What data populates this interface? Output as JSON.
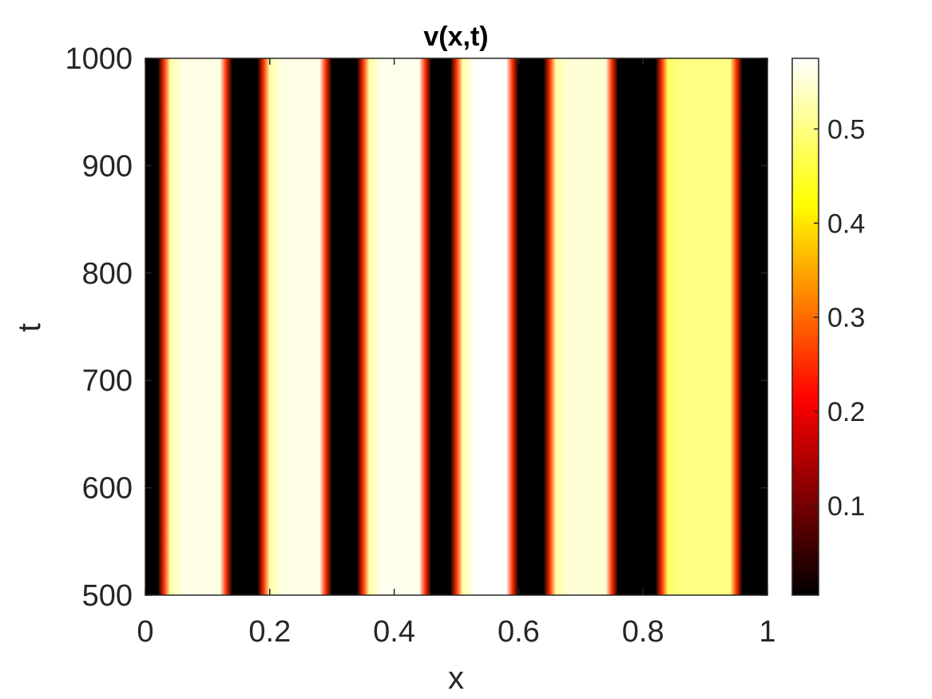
{
  "chart_data": {
    "type": "heatmap",
    "title": "v(x,t)",
    "xlabel": "x",
    "ylabel": "t",
    "xlim": [
      0,
      1
    ],
    "ylim": [
      500,
      1000
    ],
    "xticks": [
      0,
      0.2,
      0.4,
      0.6,
      0.8,
      1
    ],
    "xtick_labels": [
      "0",
      "0.2",
      "0.4",
      "0.6",
      "0.8",
      "1"
    ],
    "yticks": [
      500,
      600,
      700,
      800,
      900,
      1000
    ],
    "ytick_labels": [
      "500",
      "600",
      "700",
      "800",
      "900",
      "1000"
    ],
    "colormap": "hot",
    "colorbar": {
      "range": [
        0.005,
        0.575
      ],
      "ticks": [
        0.1,
        0.2,
        0.3,
        0.4,
        0.5
      ],
      "tick_labels": [
        "0.1",
        "0.2",
        "0.3",
        "0.4",
        "0.5"
      ]
    },
    "pattern": "stationary vertical stripes, constant in t",
    "x": [
      0.0,
      0.02,
      0.03,
      0.04,
      0.06,
      0.12,
      0.13,
      0.14,
      0.18,
      0.19,
      0.2,
      0.22,
      0.28,
      0.29,
      0.3,
      0.34,
      0.35,
      0.36,
      0.38,
      0.44,
      0.45,
      0.46,
      0.49,
      0.5,
      0.51,
      0.53,
      0.58,
      0.59,
      0.6,
      0.64,
      0.65,
      0.66,
      0.68,
      0.74,
      0.75,
      0.76,
      0.82,
      0.83,
      0.84,
      0.86,
      0.94,
      0.95,
      0.96,
      1.0
    ],
    "v": [
      0.005,
      0.005,
      0.25,
      0.52,
      0.56,
      0.56,
      0.25,
      0.005,
      0.005,
      0.25,
      0.52,
      0.56,
      0.56,
      0.25,
      0.005,
      0.005,
      0.25,
      0.52,
      0.565,
      0.565,
      0.25,
      0.005,
      0.005,
      0.25,
      0.52,
      0.575,
      0.575,
      0.25,
      0.005,
      0.005,
      0.25,
      0.52,
      0.55,
      0.55,
      0.25,
      0.005,
      0.005,
      0.25,
      0.48,
      0.5,
      0.5,
      0.25,
      0.005,
      0.005
    ]
  }
}
